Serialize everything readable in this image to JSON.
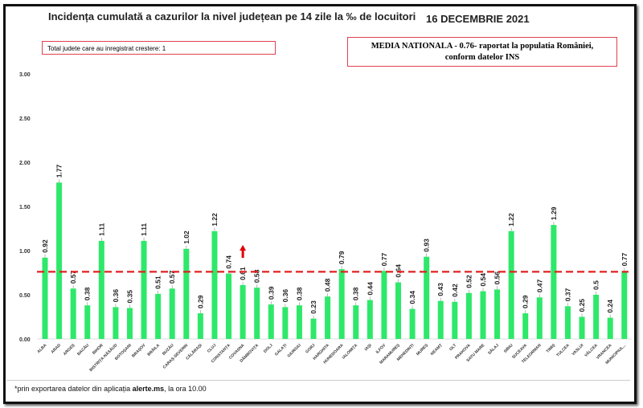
{
  "title": "Incidența cumulată a cazurilor la nivel județean pe 14 zile la ‰ de locuitori",
  "date": "16 DECEMBRIE 2021",
  "info_box": "Total judete care au inregistrat crestere: 1",
  "national_box": {
    "line1": "MEDIA NATIONALA - 0.76-  raportat la populatia României,",
    "line2": "conform datelor INS"
  },
  "footer": {
    "prefix": "*prin exportarea datelor din aplicația ",
    "app": "alerte.ms",
    "suffix": ", la ora 10.00"
  },
  "colors": {
    "bar": "#2ee86a",
    "average_line": "#e02020",
    "increase_arrow": "#e00000"
  },
  "chart_data": {
    "type": "bar",
    "ylim": [
      0,
      3
    ],
    "yticks": [
      "0.00",
      "0.50",
      "1.00",
      "1.50",
      "2.00",
      "2.50",
      "3.00"
    ],
    "grid": false,
    "reference_line": {
      "value": 0.76,
      "style": "dashed"
    },
    "increase_marker": "COVASNA",
    "categories": [
      "ALBA",
      "ARAD",
      "ARGEȘ",
      "BACĂU",
      "BIHOR",
      "BISTRIȚA-NĂSĂUD",
      "BOTOȘANI",
      "BRAȘOV",
      "BRĂILA",
      "BUZĂU",
      "CARAȘ-SEVERIN",
      "CĂLĂRAȘI",
      "CLUJ",
      "CONSTANȚA",
      "COVASNA",
      "DÂMBOVIȚA",
      "DOLJ",
      "GALAȚI",
      "GIURGIU",
      "GORJ",
      "HARGHITA",
      "HUNEDOARA",
      "IALOMIȚA",
      "IAȘI",
      "ILFOV",
      "MARAMUREȘ",
      "MEHEDINȚI",
      "MUREȘ",
      "NEAMȚ",
      "OLT",
      "PRAHOVA",
      "SATU MARE",
      "SĂLAJ",
      "SIBIU",
      "SUCEAVA",
      "TELEORMAN",
      "TIMIȘ",
      "TULCEA",
      "VASLUI",
      "VÂLCEA",
      "VRANCEA",
      "MUNICIPIUL..."
    ],
    "values": [
      0.92,
      1.77,
      0.57,
      0.38,
      1.11,
      0.36,
      0.35,
      1.11,
      0.51,
      0.57,
      1.02,
      0.29,
      1.22,
      0.74,
      0.61,
      0.58,
      0.39,
      0.36,
      0.38,
      0.23,
      0.48,
      0.79,
      0.38,
      0.44,
      0.77,
      0.64,
      0.34,
      0.93,
      0.43,
      0.42,
      0.52,
      0.54,
      0.56,
      1.22,
      0.29,
      0.47,
      1.29,
      0.37,
      0.25,
      0.5,
      0.24,
      0.77
    ],
    "data_labels": [
      "0.92",
      "1.77",
      "0.57",
      "0.38",
      "1.11",
      "0.36",
      "0.35",
      "1.11",
      "0.51",
      "0.57",
      "1.02",
      "0.29",
      "1.22",
      "0.74",
      "0.61",
      "0.58",
      "0.39",
      "0.36",
      "0.38",
      "0.23",
      "0.48",
      "0.79",
      "0.38",
      "0.44",
      "0.77",
      "0.64",
      "0.34",
      "0.93",
      "0.43",
      "0.42",
      "0.52",
      "0.54",
      "0.56",
      "1.22",
      "0.29",
      "0.47",
      "1.29",
      "0.37",
      "0.25",
      "0.5",
      "0.24",
      "0.77"
    ]
  }
}
